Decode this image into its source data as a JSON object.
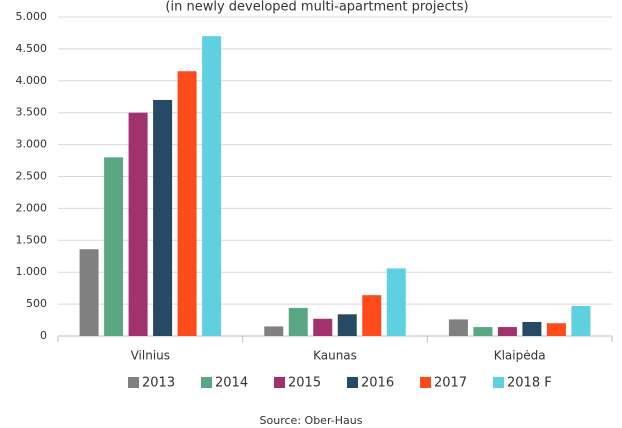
{
  "chart_data": {
    "type": "bar",
    "subtitle": "(in newly developed multi-apartment projects)",
    "categories": [
      "Vilnius",
      "Kaunas",
      "Klaipėda"
    ],
    "series": [
      {
        "name": "2013",
        "color": "#808080",
        "values": [
          1360,
          150,
          260
        ]
      },
      {
        "name": "2014",
        "color": "#5aa883",
        "values": [
          2800,
          440,
          140
        ]
      },
      {
        "name": "2015",
        "color": "#a0336b",
        "values": [
          3500,
          270,
          140
        ]
      },
      {
        "name": "2016",
        "color": "#264a63",
        "values": [
          3700,
          340,
          220
        ]
      },
      {
        "name": "2017",
        "color": "#ff4a1c",
        "values": [
          4150,
          640,
          200
        ]
      },
      {
        "name": "2018 F",
        "color": "#5fd0e0",
        "values": [
          4700,
          1060,
          470
        ]
      }
    ],
    "ylim": [
      0,
      5000
    ],
    "yticks": [
      0,
      500,
      {
        "value": 1000,
        "label": "1.000"
      },
      {
        "value": 1500,
        "label": "1.500"
      },
      {
        "value": 2000,
        "label": "2.000"
      },
      {
        "value": 2500,
        "label": "2.500"
      },
      {
        "value": 3000,
        "label": "3.000"
      },
      {
        "value": 3500,
        "label": "3.500"
      },
      {
        "value": 4000,
        "label": "4.000"
      },
      {
        "value": 4500,
        "label": "4.500"
      },
      {
        "value": 5000,
        "label": "5.000"
      }
    ],
    "grid": true,
    "legend": "bottom",
    "source": "Source: Ober-Haus"
  }
}
